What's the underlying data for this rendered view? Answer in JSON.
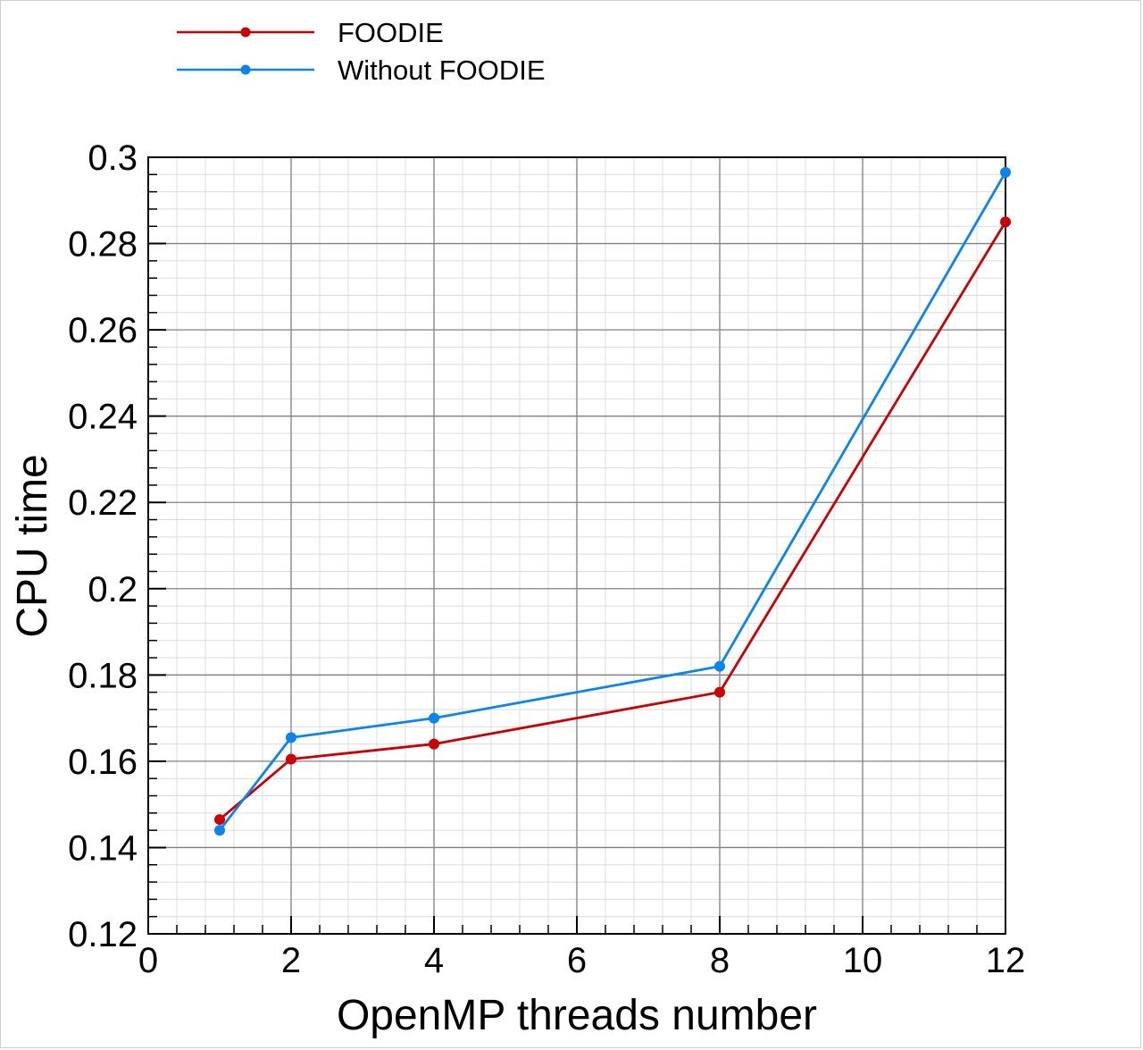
{
  "chart_data": {
    "type": "line",
    "title": "",
    "xlabel": "OpenMP threads number",
    "ylabel": "CPU time",
    "xlim": [
      0,
      12
    ],
    "ylim": [
      0.12,
      0.3
    ],
    "x_ticks": [
      "0",
      "2",
      "4",
      "6",
      "8",
      "10",
      "12"
    ],
    "y_ticks": [
      "0.12",
      "0.14",
      "0.16",
      "0.18",
      "0.2",
      "0.22",
      "0.24",
      "0.26",
      "0.28",
      "0.3"
    ],
    "grid": true,
    "legend_position": "top-left, above plot",
    "series": [
      {
        "name": "FOODIE",
        "color": "#cc0000",
        "x": [
          1,
          2,
          4,
          8,
          12
        ],
        "y": [
          0.1465,
          0.1605,
          0.164,
          0.176,
          0.285
        ]
      },
      {
        "name": "Without FOODIE",
        "color": "#0a84ee",
        "x": [
          1,
          2,
          4,
          8,
          12
        ],
        "y": [
          0.144,
          0.1655,
          0.17,
          0.182,
          0.2965
        ]
      }
    ]
  }
}
